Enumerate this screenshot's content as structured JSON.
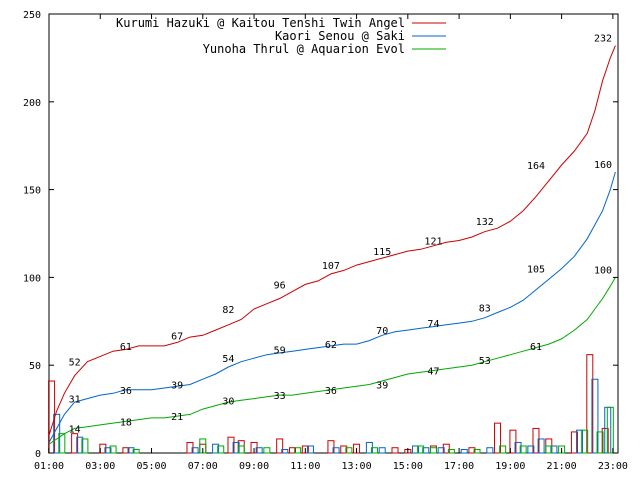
{
  "chart_data": {
    "type": "line",
    "title": "",
    "xlabel": "",
    "ylabel": "",
    "xlim": [
      1,
      23.2
    ],
    "ylim": [
      0,
      250
    ],
    "grid": false,
    "legend_position": "top-right",
    "x_ticks": [
      "01:00",
      "03:00",
      "05:00",
      "07:00",
      "09:00",
      "11:00",
      "13:00",
      "15:00",
      "17:00",
      "19:00",
      "21:00",
      "23:00"
    ],
    "y_ticks": [
      0,
      50,
      100,
      150,
      200,
      250
    ],
    "series": [
      {
        "name": "Kurumi Hazuki @ Kaitou Tenshi Twin Angel",
        "color": "#cc0000",
        "points": [
          [
            1.0,
            10
          ],
          [
            1.3,
            24
          ],
          [
            1.6,
            34
          ],
          [
            2.0,
            44
          ],
          [
            2.5,
            52
          ],
          [
            3.0,
            55
          ],
          [
            3.5,
            58
          ],
          [
            4.0,
            59
          ],
          [
            4.5,
            61
          ],
          [
            5.0,
            61
          ],
          [
            5.5,
            61
          ],
          [
            6.0,
            63
          ],
          [
            6.5,
            66
          ],
          [
            7.0,
            67
          ],
          [
            7.5,
            70
          ],
          [
            8.0,
            73
          ],
          [
            8.5,
            76
          ],
          [
            9.0,
            82
          ],
          [
            9.5,
            85
          ],
          [
            10.0,
            88
          ],
          [
            10.5,
            92
          ],
          [
            11.0,
            96
          ],
          [
            11.5,
            98
          ],
          [
            12.0,
            102
          ],
          [
            12.5,
            104
          ],
          [
            13.0,
            107
          ],
          [
            13.5,
            109
          ],
          [
            14.0,
            111
          ],
          [
            14.5,
            113
          ],
          [
            15.0,
            115
          ],
          [
            15.5,
            116
          ],
          [
            16.0,
            118
          ],
          [
            16.5,
            120
          ],
          [
            17.0,
            121
          ],
          [
            17.5,
            123
          ],
          [
            18.0,
            126
          ],
          [
            18.5,
            128
          ],
          [
            19.0,
            132
          ],
          [
            19.5,
            138
          ],
          [
            20.0,
            146
          ],
          [
            20.5,
            155
          ],
          [
            21.0,
            164
          ],
          [
            21.5,
            172
          ],
          [
            22.0,
            182
          ],
          [
            22.3,
            195
          ],
          [
            22.6,
            212
          ],
          [
            22.9,
            225
          ],
          [
            23.1,
            232
          ]
        ],
        "labels": [
          [
            2.0,
            52
          ],
          [
            4.0,
            61
          ],
          [
            6.0,
            67
          ],
          [
            8.0,
            82
          ],
          [
            10.0,
            96
          ],
          [
            12.0,
            107
          ],
          [
            14.0,
            115
          ],
          [
            16.0,
            121
          ],
          [
            18.0,
            132
          ],
          [
            20.0,
            164
          ],
          [
            22.0,
            232
          ]
        ]
      },
      {
        "name": "Kaori Senou @ Saki",
        "color": "#0066cc",
        "points": [
          [
            1.0,
            6
          ],
          [
            1.3,
            14
          ],
          [
            1.6,
            22
          ],
          [
            2.0,
            29
          ],
          [
            2.5,
            31
          ],
          [
            3.0,
            33
          ],
          [
            3.5,
            34
          ],
          [
            4.0,
            36
          ],
          [
            4.5,
            36
          ],
          [
            5.0,
            36
          ],
          [
            5.5,
            37
          ],
          [
            6.0,
            38
          ],
          [
            6.5,
            39
          ],
          [
            7.0,
            42
          ],
          [
            7.5,
            45
          ],
          [
            8.0,
            49
          ],
          [
            8.5,
            52
          ],
          [
            9.0,
            54
          ],
          [
            9.5,
            56
          ],
          [
            10.0,
            57
          ],
          [
            10.5,
            58
          ],
          [
            11.0,
            59
          ],
          [
            11.5,
            60
          ],
          [
            12.0,
            61
          ],
          [
            12.5,
            62
          ],
          [
            13.0,
            62
          ],
          [
            13.5,
            64
          ],
          [
            14.0,
            67
          ],
          [
            14.5,
            69
          ],
          [
            15.0,
            70
          ],
          [
            15.5,
            71
          ],
          [
            16.0,
            72
          ],
          [
            16.5,
            73
          ],
          [
            17.0,
            74
          ],
          [
            17.5,
            75
          ],
          [
            18.0,
            77
          ],
          [
            18.5,
            80
          ],
          [
            19.0,
            83
          ],
          [
            19.5,
            87
          ],
          [
            20.0,
            93
          ],
          [
            20.5,
            99
          ],
          [
            21.0,
            105
          ],
          [
            21.5,
            112
          ],
          [
            22.0,
            122
          ],
          [
            22.3,
            130
          ],
          [
            22.6,
            138
          ],
          [
            22.9,
            150
          ],
          [
            23.1,
            160
          ]
        ],
        "labels": [
          [
            2.0,
            31
          ],
          [
            4.0,
            36
          ],
          [
            6.0,
            39
          ],
          [
            8.0,
            54
          ],
          [
            10.0,
            59
          ],
          [
            12.0,
            62
          ],
          [
            14.0,
            70
          ],
          [
            16.0,
            74
          ],
          [
            18.0,
            83
          ],
          [
            20.0,
            105
          ],
          [
            22.0,
            160
          ]
        ]
      },
      {
        "name": "Yunoha Thrul @ Aquarion Evol",
        "color": "#00aa00",
        "points": [
          [
            1.0,
            5
          ],
          [
            1.3,
            8
          ],
          [
            1.6,
            11
          ],
          [
            2.0,
            14
          ],
          [
            2.5,
            15
          ],
          [
            3.0,
            16
          ],
          [
            3.5,
            17
          ],
          [
            4.0,
            18
          ],
          [
            4.5,
            19
          ],
          [
            5.0,
            20
          ],
          [
            5.5,
            20
          ],
          [
            6.0,
            21
          ],
          [
            6.5,
            22
          ],
          [
            7.0,
            25
          ],
          [
            7.5,
            27
          ],
          [
            8.0,
            29
          ],
          [
            8.5,
            30
          ],
          [
            9.0,
            31
          ],
          [
            9.5,
            32
          ],
          [
            10.0,
            33
          ],
          [
            10.5,
            33
          ],
          [
            11.0,
            34
          ],
          [
            11.5,
            35
          ],
          [
            12.0,
            36
          ],
          [
            12.5,
            37
          ],
          [
            13.0,
            38
          ],
          [
            13.5,
            39
          ],
          [
            14.0,
            41
          ],
          [
            14.5,
            43
          ],
          [
            15.0,
            45
          ],
          [
            15.5,
            46
          ],
          [
            16.0,
            47
          ],
          [
            16.5,
            48
          ],
          [
            17.0,
            49
          ],
          [
            17.5,
            50
          ],
          [
            18.0,
            52
          ],
          [
            18.5,
            54
          ],
          [
            19.0,
            56
          ],
          [
            19.5,
            58
          ],
          [
            20.0,
            60
          ],
          [
            20.5,
            62
          ],
          [
            21.0,
            65
          ],
          [
            21.5,
            70
          ],
          [
            22.0,
            76
          ],
          [
            22.3,
            82
          ],
          [
            22.6,
            88
          ],
          [
            22.9,
            95
          ],
          [
            23.1,
            100
          ]
        ],
        "labels": [
          [
            2.0,
            14
          ],
          [
            4.0,
            18
          ],
          [
            6.0,
            21
          ],
          [
            8.0,
            30
          ],
          [
            10.0,
            33
          ],
          [
            12.0,
            36
          ],
          [
            14.0,
            39
          ],
          [
            16.0,
            47
          ],
          [
            18.0,
            53
          ],
          [
            20.0,
            61
          ],
          [
            22.0,
            100
          ]
        ]
      }
    ],
    "bars": [
      {
        "color": "#cc0000",
        "items": [
          [
            1.1,
            41
          ],
          [
            2.0,
            11
          ],
          [
            3.1,
            5
          ],
          [
            4.0,
            3
          ],
          [
            6.5,
            6
          ],
          [
            7.0,
            5
          ],
          [
            8.1,
            9
          ],
          [
            8.5,
            7
          ],
          [
            9.0,
            6
          ],
          [
            10.0,
            8
          ],
          [
            10.5,
            3
          ],
          [
            11.0,
            4
          ],
          [
            12.0,
            7
          ],
          [
            12.5,
            4
          ],
          [
            13.0,
            5
          ],
          [
            14.5,
            3
          ],
          [
            15.0,
            2
          ],
          [
            16.0,
            4
          ],
          [
            16.5,
            5
          ],
          [
            17.5,
            3
          ],
          [
            18.5,
            17
          ],
          [
            19.1,
            13
          ],
          [
            20.0,
            14
          ],
          [
            20.5,
            8
          ],
          [
            21.5,
            12
          ],
          [
            22.1,
            56
          ],
          [
            22.7,
            14
          ]
        ]
      },
      {
        "color": "#0066cc",
        "items": [
          [
            1.3,
            22
          ],
          [
            2.2,
            9
          ],
          [
            3.3,
            3
          ],
          [
            4.2,
            3
          ],
          [
            6.7,
            3
          ],
          [
            7.5,
            5
          ],
          [
            8.3,
            6
          ],
          [
            9.2,
            3
          ],
          [
            10.2,
            2
          ],
          [
            11.2,
            4
          ],
          [
            12.2,
            3
          ],
          [
            13.5,
            6
          ],
          [
            14.0,
            3
          ],
          [
            15.3,
            4
          ],
          [
            15.7,
            3
          ],
          [
            16.3,
            3
          ],
          [
            17.2,
            2
          ],
          [
            18.2,
            3
          ],
          [
            19.3,
            6
          ],
          [
            19.8,
            4
          ],
          [
            20.2,
            8
          ],
          [
            20.7,
            4
          ],
          [
            21.7,
            13
          ],
          [
            22.3,
            42
          ],
          [
            22.8,
            26
          ]
        ]
      },
      {
        "color": "#00aa00",
        "items": [
          [
            1.5,
            11
          ],
          [
            2.4,
            8
          ],
          [
            3.5,
            4
          ],
          [
            4.4,
            2
          ],
          [
            7.0,
            8
          ],
          [
            7.7,
            4
          ],
          [
            8.5,
            4
          ],
          [
            9.5,
            3
          ],
          [
            10.7,
            3
          ],
          [
            12.7,
            3
          ],
          [
            13.7,
            3
          ],
          [
            15.5,
            4
          ],
          [
            16.0,
            3
          ],
          [
            16.7,
            2
          ],
          [
            17.7,
            2
          ],
          [
            18.7,
            4
          ],
          [
            19.5,
            4
          ],
          [
            20.5,
            4
          ],
          [
            21.0,
            4
          ],
          [
            21.9,
            13
          ],
          [
            22.5,
            12
          ],
          [
            22.9,
            26
          ]
        ]
      }
    ]
  }
}
